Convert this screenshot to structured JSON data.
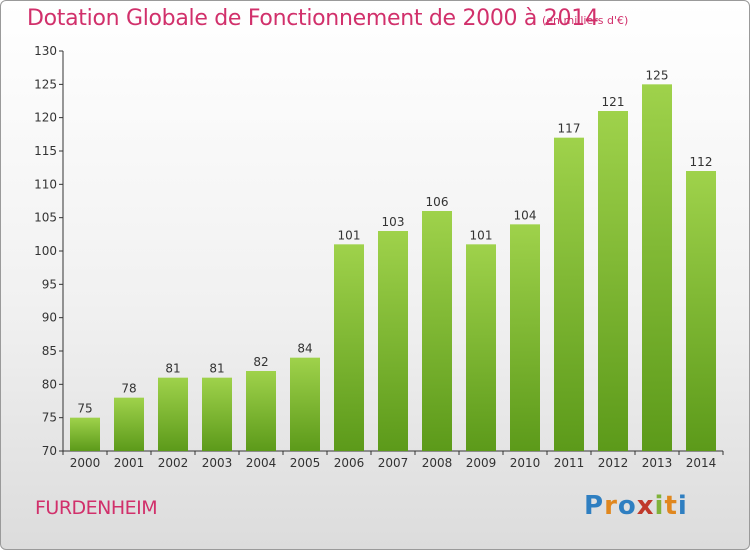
{
  "colors": {
    "title": "#d1306b",
    "bar_top": "#9fd24b",
    "bar_bottom": "#5c9a1a"
  },
  "header": {
    "title": "Dotation Globale de Fonctionnement de 2000 à 2014",
    "unit": "(en milliers d'€)"
  },
  "footer": {
    "commune": "FURDENHEIM",
    "brand_letters": [
      "P",
      "r",
      "o",
      "x",
      "i",
      "t",
      "i"
    ]
  },
  "chart_data": {
    "type": "bar",
    "title": "Dotation Globale de Fonctionnement de 2000 à 2014",
    "subtitle": "(en milliers d'€)",
    "xlabel": "",
    "ylabel": "",
    "categories": [
      "2000",
      "2001",
      "2002",
      "2003",
      "2004",
      "2005",
      "2006",
      "2007",
      "2008",
      "2009",
      "2010",
      "2011",
      "2012",
      "2013",
      "2014"
    ],
    "values": [
      75,
      78,
      81,
      81,
      82,
      84,
      101,
      103,
      106,
      101,
      104,
      117,
      121,
      125,
      112
    ],
    "ylim": [
      70,
      130
    ],
    "yticks": [
      70,
      75,
      80,
      85,
      90,
      95,
      100,
      105,
      110,
      115,
      120,
      125,
      130
    ],
    "grid": false,
    "legend": "none"
  }
}
